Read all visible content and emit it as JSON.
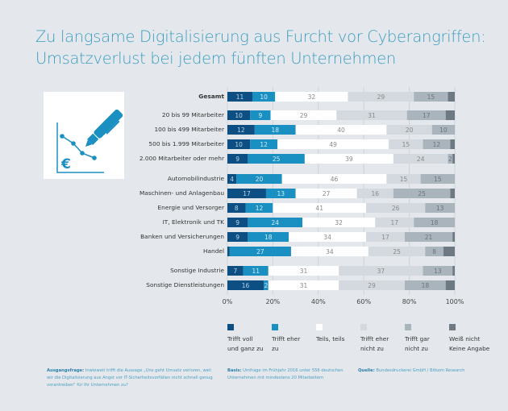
{
  "header": {
    "title_line1": "Zu langsame Digitalisierung aus Furcht vor Cyberangriffen:",
    "title_line2": "Umsatzverlust bei jedem fünften Unternehmen"
  },
  "icon": {
    "name": "chart-pen-euro-icon",
    "currency_symbol": "€"
  },
  "chart_data": {
    "type": "bar",
    "orientation": "horizontal-stacked-100",
    "title": "Zu langsame Digitalisierung aus Furcht vor Cyberangriffen: Umsatzverlust bei jedem fünften Unternehmen",
    "xlabel": "",
    "ylabel": "",
    "xlim": [
      0,
      100
    ],
    "x_ticks": [
      "0%",
      "20%",
      "40%",
      "60%",
      "80%",
      "100%"
    ],
    "grid": true,
    "legend_position": "bottom",
    "categories": [
      "Gesamt",
      "20 bis 99 Mitarbeiter",
      "100 bis 499 Mitarbeiter",
      "500 bis 1.999 Mitarbeiter",
      "2.000 Mitarbeiter oder mehr",
      "Automobilindustrie",
      "Maschinen- und Anlagenbau",
      "Energie und Versorger",
      "IT, Elektronik und TK",
      "Banken und Versicherungen",
      "Handel",
      "Sonstige Industrie",
      "Sonstige Dienstleistungen"
    ],
    "category_bold": [
      true,
      false,
      false,
      false,
      false,
      false,
      false,
      false,
      false,
      false,
      false,
      false,
      false
    ],
    "series": [
      {
        "name": "Trifft voll und ganz zu",
        "color": "#0d4f82",
        "label_color": "#b8d4ea",
        "values": [
          11,
          10,
          12,
          10,
          9,
          4,
          17,
          8,
          9,
          9,
          1,
          7,
          16
        ]
      },
      {
        "name": "Trifft eher zu",
        "color": "#1a8fc2",
        "label_color": "#d4ecf7",
        "values": [
          10,
          9,
          18,
          12,
          25,
          20,
          13,
          12,
          24,
          18,
          27,
          11,
          2
        ]
      },
      {
        "name": "Teils, teils",
        "color": "#ffffff",
        "label_color": "#888888",
        "values": [
          32,
          29,
          40,
          49,
          39,
          46,
          27,
          41,
          32,
          34,
          34,
          31,
          31
        ]
      },
      {
        "name": "Trifft eher nicht zu",
        "color": "#d3d9de",
        "label_color": "#888888",
        "values": [
          29,
          31,
          20,
          15,
          24,
          15,
          16,
          26,
          17,
          17,
          25,
          37,
          29
        ]
      },
      {
        "name": "Trifft gar nicht zu",
        "color": "#a9b4bc",
        "label_color": "#6a747b",
        "values": [
          15,
          17,
          10,
          12,
          2,
          15,
          25,
          13,
          18,
          21,
          8,
          13,
          18
        ]
      },
      {
        "name": "Weiß nicht / Keine Angabe",
        "color": "#6e7a83",
        "label_color": "#ffffff",
        "values": [
          3,
          4,
          0,
          2,
          1,
          0,
          2,
          0,
          0,
          1,
          5,
          1,
          4
        ]
      }
    ],
    "value_labels_shown": [
      [
        true,
        true,
        true,
        true,
        true,
        false
      ],
      [
        true,
        true,
        true,
        true,
        true,
        false
      ],
      [
        true,
        true,
        true,
        true,
        true,
        false
      ],
      [
        true,
        true,
        true,
        true,
        true,
        false
      ],
      [
        true,
        true,
        true,
        true,
        true,
        false
      ],
      [
        true,
        true,
        true,
        true,
        true,
        false
      ],
      [
        true,
        true,
        true,
        true,
        true,
        false
      ],
      [
        true,
        true,
        true,
        true,
        true,
        false
      ],
      [
        true,
        true,
        true,
        true,
        true,
        false
      ],
      [
        true,
        true,
        true,
        true,
        true,
        false
      ],
      [
        false,
        true,
        true,
        true,
        true,
        false
      ],
      [
        true,
        true,
        true,
        true,
        true,
        false
      ],
      [
        true,
        true,
        true,
        true,
        true,
        false
      ]
    ]
  },
  "legend": [
    {
      "label": "Trifft voll\nund ganz zu",
      "color": "#0d4f82"
    },
    {
      "label": "Trifft eher\nzu",
      "color": "#1a8fc2"
    },
    {
      "label": "Teils, teils",
      "color": "#ffffff"
    },
    {
      "label": "Trifft eher\nnicht zu",
      "color": "#d3d9de"
    },
    {
      "label": "Trifft gar\nnicht zu",
      "color": "#a9b4bc"
    },
    {
      "label": "Weiß nicht\nKeine Angabe",
      "color": "#6e7a83"
    }
  ],
  "footer": {
    "question_label": "Ausgangsfrage:",
    "question_text": " Inwieweit trifft die Aussage „Uns geht Umsatz verloren, weil wir die Digitalisierung aus Angst vor IT-Sicherheitsvorfällen nicht schnell genug vorantreiben“ für Ihr Unternehmen zu?",
    "basis_label": "Basis:",
    "basis_text": " Umfrage im Frühjahr 2016 unter 556 deutschen Unternehmen mit mindestens 20 Mitarbeitern",
    "source_label": "Quelle:",
    "source_text": " Bundesdruckerei GmbH / Bitkom Research"
  }
}
